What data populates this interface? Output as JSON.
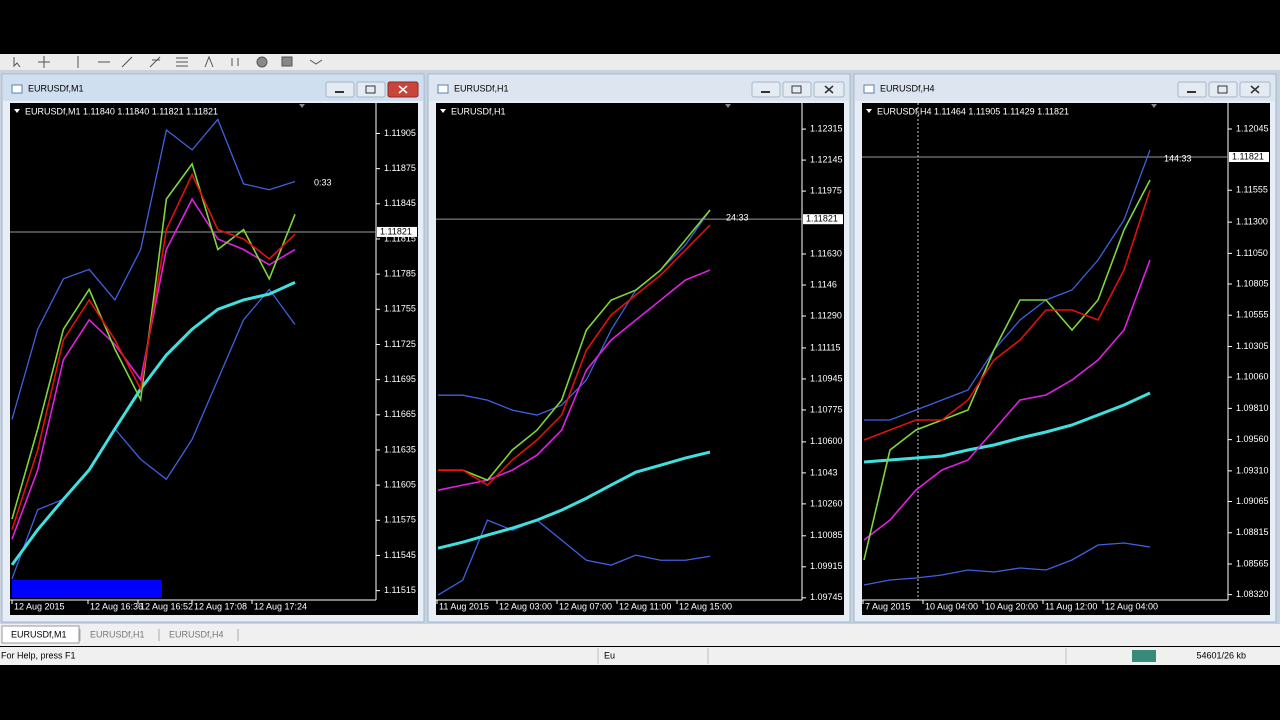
{
  "windows": [
    {
      "title": "EURUSDf,M1",
      "header": "EURUSDf,M1  1.11840 1.11840 1.11821 1.11821",
      "countdown": "0:33",
      "price_tag": 1.11821,
      "ylim": [
        1.11507,
        1.11931
      ],
      "yticks": [
        1.11905,
        1.11875,
        1.11845,
        1.11815,
        1.11785,
        1.11755,
        1.11725,
        1.11695,
        1.11665,
        1.11635,
        1.11605,
        1.11575,
        1.11545,
        1.11515
      ],
      "time_labels": [
        "12 Aug 2015",
        "12 Aug 16:36",
        "12 Aug 16:52",
        "12 Aug 17:08",
        "12 Aug 17:24"
      ],
      "lines": [
        {
          "color": "#4060e0",
          "values": [
            1.11661,
            1.11738,
            1.11781,
            1.11789,
            1.11763,
            1.11806,
            1.11908,
            1.11891,
            1.11917,
            1.11862,
            1.11857,
            1.11864
          ]
        },
        {
          "color": "#4060e0",
          "values": [
            1.11525,
            1.11584,
            1.11593,
            1.11618,
            1.11653,
            1.11627,
            1.1161,
            1.11644,
            1.11695,
            1.11746,
            1.11772,
            1.11742
          ]
        },
        {
          "color": "#40e0e0",
          "values": [
            1.11537,
            1.11567,
            1.11593,
            1.11618,
            1.11653,
            1.11687,
            1.11716,
            1.11738,
            1.11755,
            1.11763,
            1.11768,
            1.11778
          ]
        },
        {
          "color": "#e020e0",
          "values": [
            1.11559,
            1.11618,
            1.11712,
            1.11746,
            1.11725,
            1.11695,
            1.11806,
            1.11849,
            1.11815,
            1.11806,
            1.11793,
            1.11806
          ]
        },
        {
          "color": "#7fd63a",
          "values": [
            1.11576,
            1.11653,
            1.11738,
            1.11772,
            1.11721,
            1.11678,
            1.11849,
            1.11879,
            1.11806,
            1.11823,
            1.11781,
            1.11836
          ]
        },
        {
          "color": "#e01010",
          "values": [
            1.11567,
            1.11635,
            1.11729,
            1.11763,
            1.11729,
            1.11687,
            1.11823,
            1.1187,
            1.11823,
            1.11815,
            1.11798,
            1.11819
          ]
        }
      ]
    },
    {
      "title": "EURUSDf,H1",
      "header": "EURUSDf,H1",
      "countdown": "24:33",
      "price_tag": 1.11821,
      "ylim": [
        1.09733,
        1.12458
      ],
      "yticks": [
        1.12315,
        1.12145,
        1.11975,
        {
          "value": 1.1163,
          "label": "1.11630"
        },
        1.1146,
        {
          "value": 1.1129,
          "label": "1.11290"
        },
        1.11115,
        1.10945,
        1.10775,
        {
          "value": 1.106,
          "label": "1.10600"
        },
        1.1043,
        {
          "value": 1.1026,
          "label": "1.10260"
        },
        1.10085,
        1.09915,
        1.09745
      ],
      "time_labels": [
        "11 Aug 2015",
        "12 Aug 03:00",
        "12 Aug 07:00",
        "12 Aug 11:00",
        "12 Aug 15:00"
      ],
      "lines": [
        {
          "color": "#4060e0",
          "values": [
            1.10856,
            1.10856,
            1.10829,
            1.10774,
            1.10747,
            1.10801,
            1.10939,
            1.11213,
            1.11432,
            1.11542,
            1.11679,
            1.11871
          ]
        },
        {
          "color": "#4060e0",
          "values": [
            1.0976,
            1.09842,
            1.10171,
            1.10116,
            1.10171,
            1.10061,
            1.09951,
            1.09924,
            1.09979,
            1.09951,
            1.09951,
            1.09973
          ]
        },
        {
          "color": "#40e0e0",
          "values": [
            1.10017,
            1.1005,
            1.10089,
            1.10127,
            1.10171,
            1.10226,
            1.10291,
            1.10363,
            1.10434,
            1.10472,
            1.10511,
            1.10544
          ]
        },
        {
          "color": "#e020e0",
          "values": [
            1.10335,
            1.10363,
            1.1039,
            1.10445,
            1.10527,
            1.10664,
            1.10993,
            1.11158,
            1.11268,
            1.11377,
            1.11487,
            1.11542
          ]
        },
        {
          "color": "#7fd63a",
          "values": [
            1.10445,
            1.10445,
            1.1039,
            1.10555,
            1.10664,
            1.10829,
            1.11213,
            1.11377,
            1.11432,
            1.11542,
            1.11706,
            1.11871
          ]
        },
        {
          "color": "#e01010",
          "values": [
            1.10445,
            1.10445,
            1.10363,
            1.105,
            1.1061,
            1.10747,
            1.11103,
            1.11295,
            1.11405,
            1.11514,
            1.11651,
            1.11789
          ]
        }
      ]
    },
    {
      "title": "EURUSDf,H4",
      "header": "EURUSDf,H4  1.11464 1.11905 1.11429 1.11821",
      "countdown": "144:33",
      "price_tag": 1.11821,
      "ylim": [
        1.08277,
        1.12253
      ],
      "yticks": [
        1.12045,
        1.11555,
        {
          "value": 1.113,
          "label": "1.11300"
        },
        {
          "value": 1.1105,
          "label": "1.11050"
        },
        1.10805,
        1.10555,
        1.10305,
        {
          "value": 1.1006,
          "label": "1.10060"
        },
        {
          "value": 1.0981,
          "label": "1.09810"
        },
        {
          "value": 1.0956,
          "label": "1.09560"
        },
        {
          "value": 1.0931,
          "label": "1.09310"
        },
        1.09065,
        1.08815,
        1.08565,
        {
          "value": 1.0832,
          "label": "1.08320"
        }
      ],
      "time_labels": [
        "7 Aug 2015",
        "10 Aug 04:00",
        "10 Aug 20:00",
        "11 Aug 12:00",
        "12 Aug 04:00"
      ],
      "lines": [
        {
          "color": "#4060e0",
          "values": [
            1.09717,
            1.09717,
            1.09797,
            1.09877,
            1.09957,
            1.10277,
            1.10517,
            1.10677,
            1.10757,
            1.10997,
            1.11317,
            1.11877
          ]
        },
        {
          "color": "#4060e0",
          "values": [
            1.08397,
            1.08437,
            1.08453,
            1.08477,
            1.08517,
            1.08501,
            1.08533,
            1.08517,
            1.08597,
            1.08717,
            1.08733,
            1.08701
          ]
        },
        {
          "color": "#40e0e0",
          "values": [
            1.09381,
            1.09397,
            1.09413,
            1.09429,
            1.09477,
            1.09517,
            1.09573,
            1.09621,
            1.09677,
            1.09757,
            1.09837,
            1.09933
          ]
        },
        {
          "color": "#e020e0",
          "values": [
            1.08757,
            1.08917,
            1.09157,
            1.09317,
            1.09397,
            1.09637,
            1.09877,
            1.09917,
            1.10037,
            1.10197,
            1.10437,
            1.10997
          ]
        },
        {
          "color": "#7fd63a",
          "values": [
            1.08597,
            1.09477,
            1.09637,
            1.09717,
            1.09797,
            1.10277,
            1.10677,
            1.10677,
            1.10437,
            1.10677,
            1.11237,
            1.11637
          ]
        },
        {
          "color": "#e01010",
          "values": [
            1.09557,
            1.09637,
            1.09717,
            1.09717,
            1.09877,
            1.10197,
            1.10357,
            1.10597,
            1.10597,
            1.10517,
            1.10917,
            1.11557
          ]
        }
      ]
    }
  ],
  "tabs": [
    "EURUSDf,M1",
    "EURUSDf,H1",
    "EURUSDf,H4"
  ],
  "status_bar": {
    "help": "For Help, press F1",
    "profile": "Eu",
    "traffic": "54601/26 kb"
  }
}
